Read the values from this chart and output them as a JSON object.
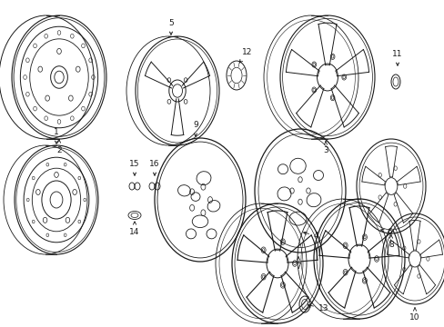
{
  "background_color": "#ffffff",
  "line_color": "#1a1a1a",
  "figsize": [
    4.89,
    3.6
  ],
  "dpi": 100,
  "label_fontsize": 6.5
}
